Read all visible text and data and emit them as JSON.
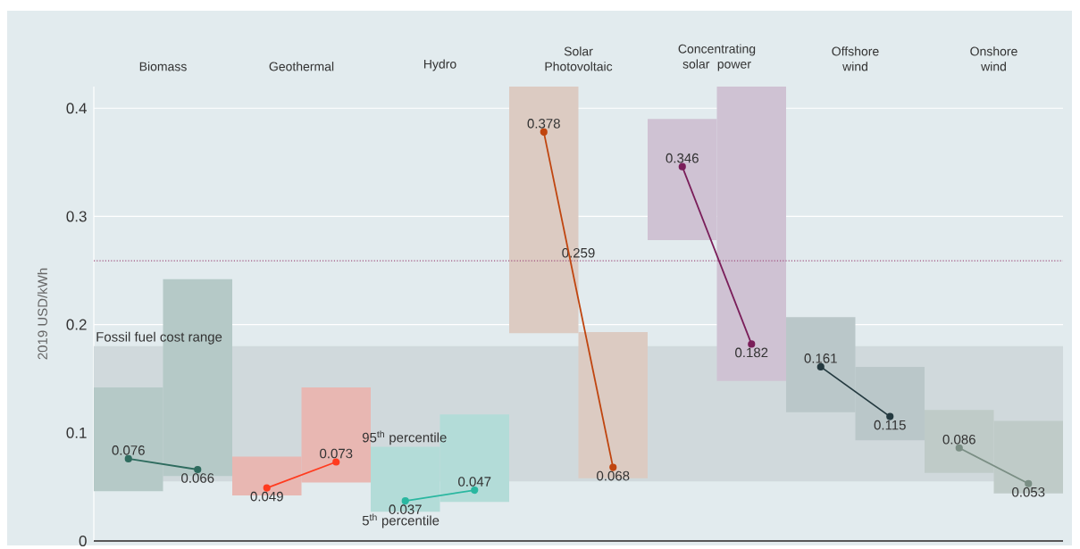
{
  "chart_data": {
    "type": "bar",
    "categories": [
      null,
      null,
      null,
      null,
      null,
      null,
      null,
      null,
      null,
      null,
      null,
      null,
      null,
      null
    ],
    "ylabel": "2019 USD/kWh",
    "ylim": [
      0,
      0.42
    ],
    "yticks": [
      0,
      0.1,
      0.2,
      0.3,
      0.4
    ],
    "grid": "y",
    "marker": "circle",
    "tick_labels": "y",
    "series": [
      {
        "type": "bar",
        "base": [
          0.046,
          0.06,
          0.042,
          0.054,
          0.027,
          0.036,
          0.192,
          0.058,
          0.278,
          0.148,
          0.119,
          0.093,
          0.063,
          0.044
        ],
        "values": [
          0.096,
          0.182,
          0.036,
          0.088,
          0.06,
          0.081,
          0.228,
          0.135,
          0.112,
          0.272,
          0.088,
          0.068,
          0.058,
          0.067
        ],
        "colors": [
          "#b5c9c7",
          "#b5c9c7",
          "#e8b7b2",
          "#e8b7b2",
          "#b3dcd8",
          "#b3dcd8",
          "#dccbc2",
          "#dccbc2",
          "#cfc2d3",
          "#cfc2d3",
          "#bac7c9",
          "#bac7c9",
          "#bfcbc8",
          "#bfcbc8"
        ]
      },
      {
        "type": "line",
        "color": "#2e6b5e",
        "values": [
          0.076,
          0.066,
          null,
          null,
          null,
          null,
          null,
          null,
          null,
          null,
          null,
          null,
          null,
          null
        ],
        "value_labels": [
          "0.076",
          "0.066",
          null,
          null,
          null,
          null,
          null,
          null,
          null,
          null,
          null,
          null,
          null,
          null
        ]
      },
      {
        "type": "line",
        "color": "#ff3b1f",
        "values": [
          null,
          null,
          0.049,
          0.073,
          null,
          null,
          null,
          null,
          null,
          null,
          null,
          null,
          null,
          null
        ],
        "value_labels": [
          null,
          null,
          "0.049",
          "0.073",
          null,
          null,
          null,
          null,
          null,
          null,
          null,
          null,
          null,
          null
        ]
      },
      {
        "type": "line",
        "color": "#2ab7a0",
        "values": [
          null,
          null,
          null,
          null,
          0.037,
          0.047,
          null,
          null,
          null,
          null,
          null,
          null,
          null,
          null
        ],
        "value_labels": [
          null,
          null,
          null,
          null,
          "0.037",
          "0.047",
          null,
          null,
          null,
          null,
          null,
          null,
          null,
          null
        ]
      },
      {
        "type": "line",
        "color": "#c0450f",
        "values": [
          null,
          null,
          null,
          null,
          null,
          null,
          0.378,
          0.068,
          null,
          null,
          null,
          null,
          null,
          null
        ],
        "value_labels": [
          null,
          null,
          null,
          null,
          null,
          null,
          "0.378",
          "0.068",
          null,
          null,
          null,
          null,
          null,
          null
        ]
      },
      {
        "type": "line",
        "color": "#7a1e5a",
        "values": [
          null,
          null,
          null,
          null,
          null,
          null,
          null,
          null,
          0.346,
          0.182,
          null,
          null,
          null,
          null
        ],
        "value_labels": [
          null,
          null,
          null,
          null,
          null,
          null,
          null,
          null,
          "0.346",
          "0.182",
          null,
          null,
          null,
          null
        ]
      },
      {
        "type": "line",
        "color": "#243a40",
        "values": [
          null,
          null,
          null,
          null,
          null,
          null,
          null,
          null,
          null,
          null,
          0.161,
          0.115,
          null,
          null
        ],
        "value_labels": [
          null,
          null,
          null,
          null,
          null,
          null,
          null,
          null,
          null,
          null,
          "0.161",
          "0.115",
          null,
          null
        ]
      },
      {
        "type": "line",
        "color": "#7a8e84",
        "values": [
          null,
          null,
          null,
          null,
          null,
          null,
          null,
          null,
          null,
          null,
          null,
          null,
          0.086,
          0.053
        ],
        "value_labels": [
          null,
          null,
          null,
          null,
          null,
          null,
          null,
          null,
          null,
          null,
          null,
          null,
          "0.086",
          "0.053"
        ]
      }
    ],
    "bands": [
      {
        "axis": "y",
        "from": 0.055,
        "to": 0.18,
        "label": "Fossil fuel cost range",
        "color": "#d0d9dc"
      }
    ],
    "ref_lines": [
      {
        "axis": "y",
        "value": 0.259,
        "label": "0.259",
        "line_style": "dotted",
        "color": "#a0527f"
      }
    ],
    "annotations": [
      "Biomass",
      "Geothermal",
      "Hydro",
      "Solar Photovoltaic",
      "Concentrating solar power",
      "Offshore wind",
      "Onshore wind",
      {
        "text": "95$^{th}$ percentile",
        "y": 0.087
      },
      {
        "text": "5$^{th}$ percentile",
        "y": 0.027
      }
    ]
  }
}
